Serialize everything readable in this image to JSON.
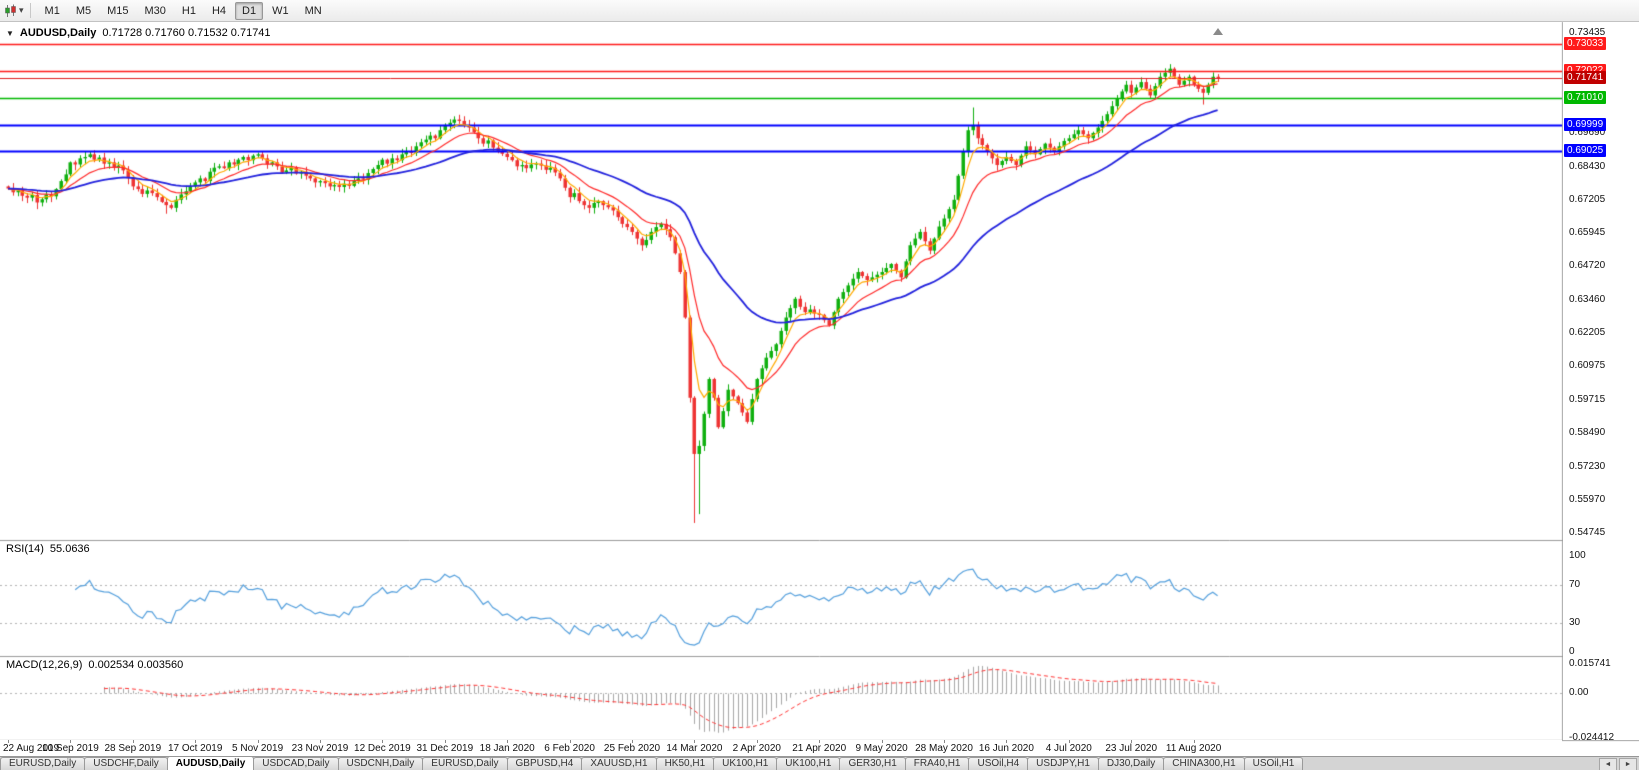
{
  "toolbar": {
    "timeframes": [
      "M1",
      "M5",
      "M15",
      "M30",
      "H1",
      "H4",
      "D1",
      "W1",
      "MN"
    ],
    "active_timeframe": "D1",
    "caret_glyph": "▾"
  },
  "titles": {
    "title_caret": "▼",
    "main_symbol": "AUDUSD,Daily",
    "main_ohlc": "0.71728 0.71760 0.71532 0.71741",
    "rsi_name": "RSI(14)",
    "rsi_value": "55.0636",
    "macd_name": "MACD(12,26,9)",
    "macd_value": "0.002534 0.003560"
  },
  "chart_data": {
    "type": "candlestick",
    "symbol": "AUDUSD",
    "timeframe": "Daily",
    "ohlc_display": {
      "open": "0.71728",
      "high": "0.71760",
      "low": "0.71532",
      "close": "0.71741"
    },
    "y_axis": {
      "min": 0.54745,
      "max": 0.73435,
      "plain_labels": [
        0.73435,
        0.6969,
        0.6843,
        0.67205,
        0.65945,
        0.6472,
        0.6346,
        0.62205,
        0.60975,
        0.59715,
        0.5849,
        0.5723,
        0.5597,
        0.54745
      ]
    },
    "x_axis": {
      "labels": [
        "22 Aug 2019",
        "10 Sep 2019",
        "28 Sep 2019",
        "17 Oct 2019",
        "5 Nov 2019",
        "23 Nov 2019",
        "12 Dec 2019",
        "31 Dec 2019",
        "18 Jan 2020",
        "6 Feb 2020",
        "25 Feb 2020",
        "14 Mar 2020",
        "2 Apr 2020",
        "21 Apr 2020",
        "9 May 2020",
        "28 May 2020",
        "16 Jun 2020",
        "4 Jul 2020",
        "23 Jul 2020",
        "11 Aug 2020"
      ],
      "label_candle_indices": [
        0,
        13,
        26,
        39,
        52,
        65,
        78,
        91,
        104,
        117,
        130,
        143,
        156,
        169,
        182,
        195,
        208,
        221,
        234,
        247
      ]
    },
    "series": {
      "first_open": 0.677,
      "wick_base": 0.0022,
      "closes": [
        0.6762,
        0.6748,
        0.6755,
        0.6735,
        0.6728,
        0.6738,
        0.671,
        0.6722,
        0.674,
        0.6733,
        0.676,
        0.679,
        0.6815,
        0.686,
        0.6852,
        0.6875,
        0.688,
        0.689,
        0.687,
        0.6878,
        0.6855,
        0.686,
        0.684,
        0.6848,
        0.683,
        0.68,
        0.677,
        0.676,
        0.6742,
        0.6755,
        0.6745,
        0.673,
        0.6712,
        0.67,
        0.669,
        0.672,
        0.674,
        0.6752,
        0.677,
        0.6785,
        0.68,
        0.679,
        0.6825,
        0.684,
        0.6845,
        0.6838,
        0.686,
        0.6852,
        0.687,
        0.688,
        0.6868,
        0.6885,
        0.689,
        0.6875,
        0.6852,
        0.686,
        0.6845,
        0.6822,
        0.683,
        0.684,
        0.6818,
        0.6825,
        0.681,
        0.68,
        0.6785,
        0.679,
        0.6782,
        0.677,
        0.6775,
        0.6768,
        0.678,
        0.6772,
        0.679,
        0.68,
        0.6795,
        0.682,
        0.6835,
        0.685,
        0.687,
        0.6855,
        0.6875,
        0.6868,
        0.689,
        0.69,
        0.6895,
        0.692,
        0.6935,
        0.6945,
        0.696,
        0.695,
        0.698,
        0.7,
        0.7008,
        0.702,
        0.7015,
        0.6998,
        0.699,
        0.6972,
        0.695,
        0.693,
        0.6942,
        0.6915,
        0.69,
        0.6892,
        0.688,
        0.6868,
        0.6845,
        0.685,
        0.6838,
        0.6852,
        0.6855,
        0.6848,
        0.6832,
        0.684,
        0.6822,
        0.68,
        0.6765,
        0.673,
        0.6745,
        0.6715,
        0.67,
        0.669,
        0.6708,
        0.6715,
        0.67,
        0.6692,
        0.668,
        0.6655,
        0.663,
        0.6618,
        0.66,
        0.6575,
        0.655,
        0.657,
        0.66,
        0.6618,
        0.663,
        0.661,
        0.658,
        0.652,
        0.645,
        0.628,
        0.598,
        0.577,
        0.58,
        0.592,
        0.605,
        0.598,
        0.587,
        0.593,
        0.601,
        0.5985,
        0.596,
        0.5925,
        0.589,
        0.5975,
        0.605,
        0.609,
        0.613,
        0.6155,
        0.618,
        0.623,
        0.628,
        0.6315,
        0.635,
        0.632,
        0.63,
        0.631,
        0.6295,
        0.629,
        0.627,
        0.625,
        0.63,
        0.635,
        0.6375,
        0.64,
        0.6425,
        0.645,
        0.6435,
        0.642,
        0.643,
        0.644,
        0.645,
        0.6465,
        0.648,
        0.6455,
        0.643,
        0.649,
        0.655,
        0.6575,
        0.66,
        0.6565,
        0.653,
        0.6575,
        0.662,
        0.665,
        0.6685,
        0.672,
        0.681,
        0.69,
        0.698,
        0.7,
        0.695,
        0.6925,
        0.69,
        0.6875,
        0.685,
        0.6865,
        0.688,
        0.6865,
        0.685,
        0.6885,
        0.692,
        0.6905,
        0.689,
        0.691,
        0.693,
        0.6915,
        0.69,
        0.692,
        0.694,
        0.695,
        0.6965,
        0.698,
        0.6965,
        0.695,
        0.697,
        0.699,
        0.7015,
        0.704,
        0.707,
        0.71,
        0.7125,
        0.715,
        0.712,
        0.714,
        0.716,
        0.7135,
        0.711,
        0.7145,
        0.718,
        0.7195,
        0.721,
        0.718,
        0.715,
        0.7165,
        0.718,
        0.715,
        0.7135,
        0.712,
        0.715,
        0.718,
        0.7174
      ],
      "high_overrides": {
        "93": 0.7032,
        "201": 0.7065,
        "242": 0.7227
      },
      "low_overrides": {
        "6": 0.6685,
        "33": 0.6668,
        "143": 0.5512,
        "144": 0.5545,
        "171": 0.6246,
        "249": 0.7076
      }
    },
    "horizontal_lines": [
      {
        "value": 0.73033,
        "label": "0.73033",
        "color_key": "line_red",
        "width": 1.6
      },
      {
        "value": 0.72022,
        "label": "0.72022",
        "color_key": "line_red",
        "width": 1.6
      },
      {
        "value": 0.7101,
        "label": "0.71010",
        "color_key": "line_green",
        "width": 1.6
      },
      {
        "value": 0.69999,
        "label": "0.69999",
        "color_key": "line_blue",
        "width": 2
      },
      {
        "value": 0.69025,
        "label": "0.69025",
        "color_key": "line_blue",
        "width": 2
      }
    ],
    "bid": {
      "value": 0.71741,
      "label": "0.71741"
    },
    "moving_averages": [
      {
        "period": 5,
        "color_key": "ma_fast",
        "width": 1.2
      },
      {
        "period": 13,
        "color_key": "ma_mid",
        "width": 1.2
      },
      {
        "period": 40,
        "color_key": "ma_slow",
        "width": 1.8
      }
    ],
    "subpanels": {
      "rsi": {
        "label": "RSI(14)",
        "value_text": "55.0636",
        "period": 14,
        "range": [
          0,
          100
        ],
        "levels": [
          70,
          30
        ],
        "axis_labels": [
          "100",
          "70",
          "30",
          "0"
        ],
        "axis_values": [
          100,
          70,
          30,
          0
        ]
      },
      "macd": {
        "label": "MACD(12,26,9)",
        "value_text": "0.002534 0.003560",
        "params": [
          12,
          26,
          9
        ],
        "range": [
          -0.024412,
          0.015741
        ],
        "axis_labels": [
          "0.015741",
          "0.00",
          "-0.024412"
        ],
        "axis_values": [
          0.015741,
          0,
          -0.024412
        ]
      }
    },
    "colors": {
      "bull": "#0fb00f",
      "bear": "#ee3333",
      "ma_fast": "#ffaa00",
      "ma_mid": "#ff2a2a",
      "ma_slow": "#2222dd",
      "rsi": "#55a0dd",
      "macd_hist": "#a8a8a8",
      "macd_signal": "#ff3333",
      "line_red": "#ff1a1a",
      "line_green": "#00b800",
      "line_blue": "#0000ff",
      "bid_line": "#e02020",
      "bid_badge": "#c00000"
    }
  },
  "tabs": {
    "items": [
      "EURUSD,Daily",
      "USDCHF,Daily",
      "AUDUSD,Daily",
      "USDCAD,Daily",
      "USDCNH,Daily",
      "EURUSD,Daily",
      "GBPUSD,H4",
      "XAUUSD,H1",
      "HK50,H1",
      "UK100,H1",
      "UK100,H1",
      "GER30,H1",
      "FRA40,H1",
      "USOil,H4",
      "USDJPY,H1",
      "DJ30,Daily",
      "CHINA300,H1",
      "USOil,H1"
    ],
    "active_index": 2,
    "scroll_left_glyph": "◄",
    "scroll_right_glyph": "►"
  }
}
